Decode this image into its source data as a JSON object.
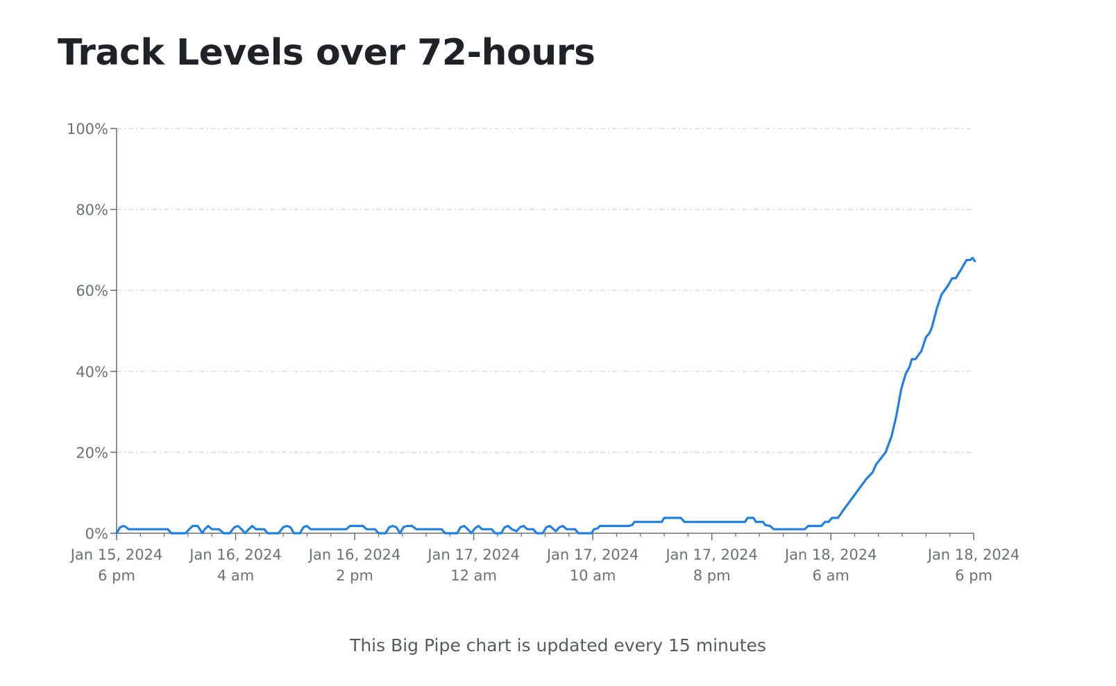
{
  "page": {
    "title": "Track Levels over 72-hours",
    "footnote": "This Big Pipe chart is updated every 15 minutes"
  },
  "colors": {
    "line": "#1f7fe6",
    "grid": "#cfd3d6",
    "axis": "#666b70",
    "tick_text": "#6b7075",
    "title": "#1f2328"
  },
  "chart_data": {
    "type": "line",
    "title": "Track Levels over 72-hours",
    "xlabel": "",
    "ylabel": "",
    "x_unit": "hours since Jan 15, 2024 6 pm",
    "xlim": [
      0,
      72
    ],
    "ylim": [
      0,
      100
    ],
    "grid": "horizontal dashed",
    "legend": "none",
    "y_ticks": [
      {
        "value": 0,
        "label": "0%"
      },
      {
        "value": 20,
        "label": "20%"
      },
      {
        "value": 40,
        "label": "40%"
      },
      {
        "value": 60,
        "label": "60%"
      },
      {
        "value": 80,
        "label": "80%"
      },
      {
        "value": 100,
        "label": "100%"
      }
    ],
    "x_ticks": [
      {
        "value": 0,
        "label": [
          "Jan 15, 2024",
          "6 pm"
        ]
      },
      {
        "value": 10,
        "label": [
          "Jan 16, 2024",
          "4 am"
        ]
      },
      {
        "value": 20,
        "label": [
          "Jan 16, 2024",
          "2 pm"
        ]
      },
      {
        "value": 30,
        "label": [
          "Jan 17, 2024",
          "12 am"
        ]
      },
      {
        "value": 40,
        "label": [
          "Jan 17, 2024",
          "10 am"
        ]
      },
      {
        "value": 50,
        "label": [
          "Jan 17, 2024",
          "8 pm"
        ]
      },
      {
        "value": 60,
        "label": [
          "Jan 18, 2024",
          "6 am"
        ]
      },
      {
        "value": 72,
        "label": [
          "Jan 18, 2024",
          "6 pm"
        ]
      }
    ],
    "minor_x_ticks": [
      2,
      4,
      6,
      8,
      12,
      14,
      16,
      18,
      22,
      24,
      26,
      28,
      32,
      34,
      36,
      38,
      42,
      44,
      46,
      48,
      52,
      54,
      56,
      58,
      62,
      64,
      66,
      68,
      70
    ],
    "series": [
      {
        "color": "#1f7fe6",
        "points": [
          [
            0,
            0
          ],
          [
            0.3,
            1.5
          ],
          [
            0.6,
            1.8
          ],
          [
            0.8,
            1.5
          ],
          [
            1,
            1
          ],
          [
            2,
            1
          ],
          [
            3,
            1
          ],
          [
            4,
            1
          ],
          [
            4.3,
            1
          ],
          [
            4.6,
            0
          ],
          [
            5.5,
            0
          ],
          [
            5.8,
            0
          ],
          [
            6.1,
            1
          ],
          [
            6.4,
            1.8
          ],
          [
            6.8,
            1.8
          ],
          [
            7,
            1
          ],
          [
            7.2,
            0
          ],
          [
            7.4,
            1
          ],
          [
            7.7,
            1.8
          ],
          [
            8,
            1
          ],
          [
            8.6,
            1
          ],
          [
            9,
            0
          ],
          [
            9.5,
            0
          ],
          [
            9.9,
            1.5
          ],
          [
            10.2,
            1.8
          ],
          [
            10.5,
            1
          ],
          [
            10.8,
            0
          ],
          [
            11.1,
            1
          ],
          [
            11.4,
            1.8
          ],
          [
            11.7,
            1
          ],
          [
            12.4,
            1
          ],
          [
            12.7,
            0
          ],
          [
            13.6,
            0
          ],
          [
            14,
            1.5
          ],
          [
            14.3,
            1.8
          ],
          [
            14.6,
            1.5
          ],
          [
            14.9,
            0
          ],
          [
            15.4,
            0
          ],
          [
            15.7,
            1.5
          ],
          [
            16,
            1.8
          ],
          [
            16.3,
            1
          ],
          [
            17,
            1
          ],
          [
            18,
            1
          ],
          [
            19,
            1
          ],
          [
            19.3,
            1
          ],
          [
            19.6,
            1.8
          ],
          [
            20.7,
            1.8
          ],
          [
            21,
            1
          ],
          [
            21.7,
            1
          ],
          [
            22,
            0
          ],
          [
            22.6,
            0
          ],
          [
            22.9,
            1.5
          ],
          [
            23.2,
            1.8
          ],
          [
            23.5,
            1.5
          ],
          [
            23.8,
            0
          ],
          [
            24.1,
            1.5
          ],
          [
            24.4,
            1.8
          ],
          [
            24.8,
            1.8
          ],
          [
            25.2,
            1
          ],
          [
            26,
            1
          ],
          [
            27,
            1
          ],
          [
            27.3,
            1
          ],
          [
            27.6,
            0
          ],
          [
            28.3,
            0
          ],
          [
            28.6,
            0
          ],
          [
            28.9,
            1.5
          ],
          [
            29.2,
            1.8
          ],
          [
            29.5,
            1
          ],
          [
            29.8,
            0
          ],
          [
            30.1,
            1.2
          ],
          [
            30.4,
            1.8
          ],
          [
            30.7,
            1
          ],
          [
            31.5,
            1
          ],
          [
            31.8,
            0
          ],
          [
            32.3,
            0
          ],
          [
            32.6,
            1.5
          ],
          [
            32.9,
            1.8
          ],
          [
            33.2,
            1
          ],
          [
            33.6,
            0.5
          ],
          [
            33.9,
            1.5
          ],
          [
            34.2,
            1.8
          ],
          [
            34.5,
            1
          ],
          [
            35,
            1
          ],
          [
            35.3,
            0
          ],
          [
            35.8,
            0
          ],
          [
            36.1,
            1.5
          ],
          [
            36.4,
            1.8
          ],
          [
            36.7,
            1
          ],
          [
            36.9,
            0.5
          ],
          [
            37.2,
            1.5
          ],
          [
            37.5,
            1.8
          ],
          [
            37.8,
            1
          ],
          [
            38.5,
            1
          ],
          [
            38.8,
            0
          ],
          [
            39.5,
            0
          ],
          [
            39.9,
            0
          ],
          [
            40.1,
            1
          ],
          [
            40.4,
            1.2
          ],
          [
            40.6,
            1.8
          ],
          [
            41.5,
            1.8
          ],
          [
            42.5,
            1.8
          ],
          [
            43,
            1.8
          ],
          [
            43.3,
            2
          ],
          [
            43.5,
            2.8
          ],
          [
            44.5,
            2.8
          ],
          [
            45.5,
            2.8
          ],
          [
            45.8,
            2.8
          ],
          [
            46,
            3.8
          ],
          [
            47,
            3.8
          ],
          [
            47.4,
            3.8
          ],
          [
            47.7,
            2.8
          ],
          [
            49,
            2.8
          ],
          [
            50,
            2.8
          ],
          [
            51,
            2.8
          ],
          [
            52,
            2.8
          ],
          [
            52.8,
            2.8
          ],
          [
            53,
            3.8
          ],
          [
            53.5,
            3.8
          ],
          [
            53.7,
            2.8
          ],
          [
            54.3,
            2.8
          ],
          [
            54.5,
            2
          ],
          [
            54.9,
            1.8
          ],
          [
            55.2,
            1
          ],
          [
            56,
            1
          ],
          [
            57,
            1
          ],
          [
            57.8,
            1
          ],
          [
            58.1,
            1.8
          ],
          [
            58.8,
            1.8
          ],
          [
            59.2,
            1.8
          ],
          [
            59.5,
            2.8
          ],
          [
            59.8,
            2.8
          ],
          [
            60.1,
            3.8
          ],
          [
            60.6,
            3.8
          ],
          [
            61,
            5.5
          ],
          [
            62,
            9.5
          ],
          [
            63,
            13.5
          ],
          [
            63.5,
            15
          ],
          [
            63.8,
            17
          ],
          [
            64.2,
            18.5
          ],
          [
            64.6,
            20
          ],
          [
            65.1,
            24
          ],
          [
            65.5,
            29
          ],
          [
            65.9,
            35.5
          ],
          [
            66.3,
            39.5
          ],
          [
            66.6,
            41
          ],
          [
            66.8,
            43
          ],
          [
            67.1,
            43
          ],
          [
            67.6,
            45
          ],
          [
            68,
            48.5
          ],
          [
            68.3,
            49.5
          ],
          [
            68.5,
            51
          ],
          [
            68.9,
            55.5
          ],
          [
            69.3,
            59
          ],
          [
            69.8,
            61
          ],
          [
            70.2,
            63
          ],
          [
            70.5,
            63
          ],
          [
            71,
            65.5
          ],
          [
            71.4,
            67.5
          ],
          [
            71.7,
            67.5
          ],
          [
            71.9,
            68
          ],
          [
            72.1,
            67.2
          ]
        ]
      }
    ]
  }
}
